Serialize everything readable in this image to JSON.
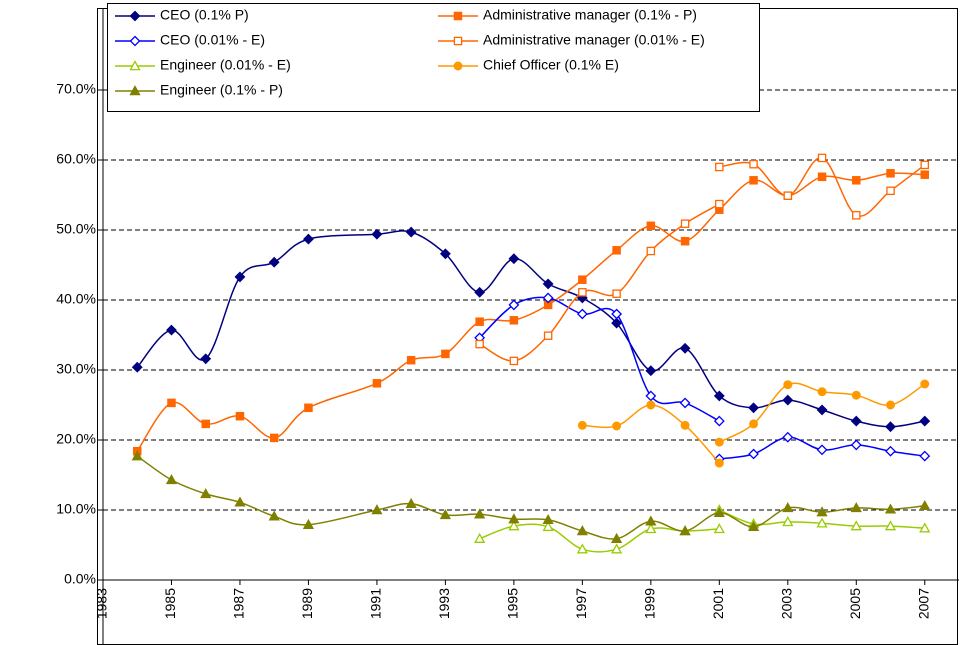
{
  "chart_data": {
    "type": "line",
    "smooth": true,
    "grid": true,
    "legend": "top-left",
    "xlim": [
      1983,
      2008
    ],
    "xticks": [
      1983,
      1985,
      1987,
      1989,
      1991,
      1993,
      1995,
      1997,
      1999,
      2001,
      2003,
      2005,
      2007
    ],
    "ylim": [
      0,
      70
    ],
    "yticks": [
      {
        "value": 0,
        "label": "0.0%"
      },
      {
        "value": 10,
        "label": "10.0%"
      },
      {
        "value": 20,
        "label": "20.0%"
      },
      {
        "value": 30,
        "label": "30.0%"
      },
      {
        "value": 40,
        "label": "40.0%"
      },
      {
        "value": 50,
        "label": "50.0%"
      },
      {
        "value": 60,
        "label": "60.0%"
      },
      {
        "value": 70,
        "label": "70.0%"
      }
    ],
    "series": [
      {
        "name": "CEO (0.1% P)",
        "color": "#000080",
        "marker": "diamond",
        "filled": true,
        "x": [
          1984,
          1985,
          1986,
          1987,
          1988,
          1989,
          1991,
          1992,
          1993,
          1994,
          1995,
          1996,
          1997,
          1998,
          1999,
          2000,
          2001,
          2002,
          2003,
          2004,
          2005,
          2006,
          2007
        ],
        "values": [
          30.4,
          35.7,
          31.6,
          43.3,
          45.4,
          48.7,
          49.4,
          49.7,
          46.6,
          41.1,
          45.9,
          42.3,
          40.3,
          36.7,
          29.9,
          33.1,
          26.3,
          24.6,
          25.7,
          24.3,
          22.7,
          21.9,
          22.7
        ]
      },
      {
        "name": "Administrative manager (0.1% - P)",
        "color": "#FF6600",
        "marker": "square",
        "filled": true,
        "x": [
          1984,
          1985,
          1986,
          1987,
          1988,
          1989,
          1991,
          1992,
          1993,
          1994,
          1995,
          1996,
          1997,
          1998,
          1999,
          2000,
          2001,
          2002,
          2003,
          2004,
          2005,
          2006,
          2007
        ],
        "values": [
          18.4,
          25.3,
          22.3,
          23.4,
          20.3,
          24.6,
          28.1,
          31.4,
          32.3,
          36.9,
          37.1,
          39.3,
          42.9,
          47.1,
          50.6,
          48.4,
          52.9,
          57.1,
          54.9,
          57.6,
          57.1,
          58.1,
          57.9
        ]
      },
      {
        "name": "CEO (0.01% - E)",
        "color": "#0000FF",
        "marker": "diamond",
        "filled": false,
        "x": [
          1994,
          1995,
          1996,
          1997,
          1998,
          1999,
          2000,
          2001,
          2001,
          2001,
          2002,
          2003,
          2004,
          2005,
          2006,
          2007
        ],
        "values": [
          34.6,
          39.3,
          40.3,
          38.0,
          38.0,
          26.3,
          25.3,
          22.7,
          null,
          17.3,
          18.0,
          20.4,
          18.6,
          19.3,
          18.4,
          17.7
        ]
      },
      {
        "name": "Administrative manager (0.01% - E)",
        "color": "#FF6600",
        "marker": "square",
        "filled": false,
        "x": [
          1994,
          1995,
          1996,
          1997,
          1998,
          1999,
          2000,
          2001,
          2001,
          2001,
          2002,
          2003,
          2004,
          2005,
          2006,
          2007
        ],
        "values": [
          33.7,
          31.3,
          34.9,
          41.1,
          40.9,
          47.0,
          50.9,
          53.7,
          null,
          59.0,
          59.4,
          54.9,
          60.3,
          52.1,
          55.6,
          59.3
        ]
      },
      {
        "name": "Engineer (0.01% - E)",
        "color": "#99CC00",
        "marker": "triangle",
        "filled": false,
        "x": [
          1994,
          1995,
          1996,
          1997,
          1998,
          1999,
          2000,
          2001,
          2001,
          2001,
          2002,
          2003,
          2004,
          2005,
          2006,
          2007
        ],
        "values": [
          5.9,
          7.7,
          7.6,
          4.4,
          4.4,
          7.3,
          7.0,
          7.3,
          null,
          10.0,
          8.0,
          8.3,
          8.1,
          7.7,
          7.7,
          7.4
        ]
      },
      {
        "name": "Chief Officer (0.1% E)",
        "color": "#FF9900",
        "marker": "circle",
        "filled": true,
        "x": [
          1997,
          1998,
          1999,
          2000,
          2001,
          2001,
          2001,
          2002,
          2003,
          2004,
          2005,
          2006,
          2007
        ],
        "values": [
          22.1,
          22.0,
          25.0,
          22.1,
          16.7,
          null,
          19.7,
          22.3,
          27.9,
          26.9,
          26.4,
          25.0,
          28.0
        ]
      },
      {
        "name": "Engineer (0.1% - P)",
        "color": "#808000",
        "marker": "triangle",
        "filled": true,
        "x": [
          1984,
          1985,
          1986,
          1987,
          1988,
          1989,
          1991,
          1992,
          1993,
          1994,
          1995,
          1996,
          1997,
          1998,
          1999,
          2000,
          2001,
          2002,
          2003,
          2004,
          2005,
          2006,
          2007
        ],
        "values": [
          17.7,
          14.3,
          12.3,
          11.1,
          9.1,
          7.9,
          10.0,
          10.9,
          9.3,
          9.4,
          8.7,
          8.6,
          7.0,
          5.9,
          8.4,
          7.0,
          9.6,
          7.6,
          10.3,
          9.7,
          10.3,
          10.1,
          10.6
        ]
      }
    ]
  }
}
